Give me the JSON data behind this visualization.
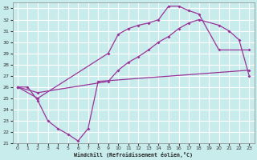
{
  "xlabel": "Windchill (Refroidissement éolien,°C)",
  "xlim": [
    -0.5,
    23.5
  ],
  "ylim": [
    21,
    33.5
  ],
  "yticks": [
    21,
    22,
    23,
    24,
    25,
    26,
    27,
    28,
    29,
    30,
    31,
    32,
    33
  ],
  "xticks": [
    0,
    1,
    2,
    3,
    4,
    5,
    6,
    7,
    8,
    9,
    10,
    11,
    12,
    13,
    14,
    15,
    16,
    17,
    18,
    19,
    20,
    21,
    22,
    23
  ],
  "line_color": "#993399",
  "bg_color": "#c8ecec",
  "grid_color": "#ffffff",
  "line1_x": [
    0,
    1,
    2,
    3,
    4,
    5,
    6,
    7,
    8,
    23
  ],
  "line1_y": [
    26.0,
    26.0,
    24.8,
    23.0,
    22.3,
    21.8,
    21.2,
    22.3,
    26.5,
    27.5
  ],
  "line2_x": [
    0,
    2,
    9,
    10,
    11,
    12,
    13,
    14,
    15,
    16,
    17,
    18,
    20,
    23
  ],
  "line2_y": [
    26.0,
    25.0,
    29.0,
    30.7,
    31.2,
    31.5,
    31.7,
    32.0,
    33.2,
    33.2,
    32.8,
    32.5,
    29.3,
    29.3
  ],
  "line3_x": [
    0,
    2,
    9,
    10,
    11,
    12,
    13,
    14,
    15,
    16,
    17,
    18,
    20,
    21,
    22,
    23
  ],
  "line3_y": [
    26.0,
    25.5,
    26.5,
    27.5,
    28.2,
    28.7,
    29.3,
    30.0,
    30.5,
    31.2,
    31.7,
    32.0,
    31.5,
    31.0,
    30.2,
    27.0
  ]
}
